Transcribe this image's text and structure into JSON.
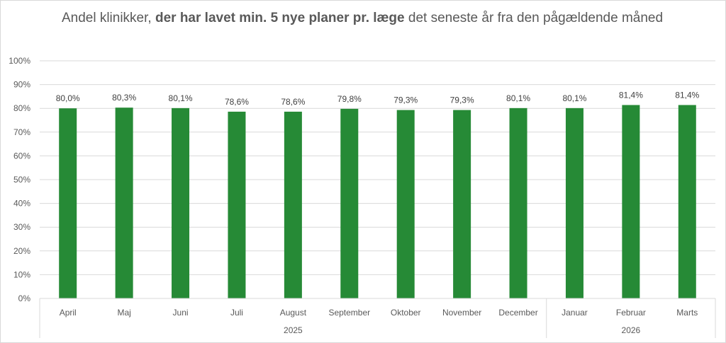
{
  "chart_data": {
    "type": "bar",
    "title_prefix": "Andel klinikker, ",
    "title_bold": "der har lavet min. 5 nye planer pr. læge",
    "title_suffix": " det seneste år fra den pågældende måned",
    "categories": [
      "April",
      "Maj",
      "Juni",
      "Juli",
      "August",
      "September",
      "Oktober",
      "November",
      "December",
      "Januar",
      "Februar",
      "Marts"
    ],
    "values": [
      80.0,
      80.3,
      80.1,
      78.6,
      78.6,
      79.8,
      79.3,
      79.3,
      80.1,
      80.1,
      81.4,
      81.4
    ],
    "data_labels": [
      "80,0%",
      "80,3%",
      "80,1%",
      "78,6%",
      "78,6%",
      "79,8%",
      "79,3%",
      "79,3%",
      "80,1%",
      "80,1%",
      "81,4%",
      "81,4%"
    ],
    "groups": [
      {
        "label": "2025",
        "start": 0,
        "end": 8
      },
      {
        "label": "2026",
        "start": 9,
        "end": 11
      }
    ],
    "ylim": [
      0,
      100
    ],
    "yticks": [
      0,
      10,
      20,
      30,
      40,
      50,
      60,
      70,
      80,
      90,
      100
    ],
    "ytick_labels": [
      "0%",
      "10%",
      "20%",
      "30%",
      "40%",
      "50%",
      "60%",
      "70%",
      "80%",
      "90%",
      "100%"
    ],
    "grid": true,
    "legend": "none",
    "bar_color": "#268a36",
    "grid_color": "#d9d9d9",
    "text_color": "#595959"
  }
}
